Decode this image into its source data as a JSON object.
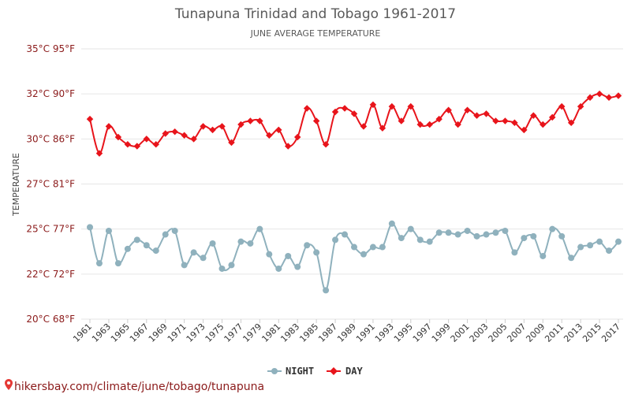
{
  "header": {
    "title": "Tunapuna Trinidad and Tobago 1961-2017",
    "subtitle": "JUNE AVERAGE TEMPERATURE"
  },
  "source": {
    "text": "hikersbay.com/climate/june/tobago/tunapuna",
    "icon": "location-pin-icon",
    "color": "#e53935"
  },
  "chart_data": {
    "type": "line",
    "title": "Tunapuna Trinidad and Tobago 1961-2017",
    "subtitle": "JUNE AVERAGE TEMPERATURE",
    "ylabel": "TEMPERATURE",
    "xlabel": "",
    "ylim": [
      20,
      35
    ],
    "grid": true,
    "legend_position": "bottom-center",
    "y_ticks": [
      {
        "value": 20,
        "label": "20°C 68°F"
      },
      {
        "value": 22.5,
        "label": "22°C 72°F"
      },
      {
        "value": 25,
        "label": "25°C 77°F"
      },
      {
        "value": 27.5,
        "label": "27°C 81°F"
      },
      {
        "value": 30,
        "label": "30°C 86°F"
      },
      {
        "value": 32.5,
        "label": "32°C 90°F"
      },
      {
        "value": 35,
        "label": "35°C 95°F"
      }
    ],
    "x_tick_labels": [
      "1961",
      "1963",
      "1965",
      "1967",
      "1969",
      "1971",
      "1973",
      "1975",
      "1977",
      "1979",
      "1981",
      "1983",
      "1985",
      "1987",
      "1989",
      "1991",
      "1993",
      "1995",
      "1997",
      "1999",
      "2001",
      "2003",
      "2005",
      "2007",
      "2009",
      "2011",
      "2013",
      "2015",
      "2017"
    ],
    "x": [
      1961,
      1962,
      1963,
      1964,
      1965,
      1966,
      1967,
      1968,
      1969,
      1970,
      1971,
      1972,
      1973,
      1974,
      1975,
      1976,
      1977,
      1978,
      1979,
      1980,
      1981,
      1982,
      1983,
      1984,
      1985,
      1986,
      1987,
      1988,
      1989,
      1990,
      1991,
      1992,
      1993,
      1994,
      1995,
      1996,
      1997,
      1998,
      1999,
      2000,
      2001,
      2002,
      2003,
      2004,
      2005,
      2006,
      2007,
      2008,
      2009,
      2010,
      2011,
      2012,
      2013,
      2014,
      2015,
      2016,
      2017
    ],
    "series": [
      {
        "name": "NIGHT",
        "color": "#8fb1bd",
        "values": [
          25.1,
          23.1,
          24.9,
          23.1,
          23.9,
          24.4,
          24.1,
          23.8,
          24.7,
          24.9,
          23.0,
          23.7,
          23.4,
          24.2,
          22.8,
          23.0,
          24.3,
          24.2,
          25.0,
          23.6,
          22.8,
          23.5,
          22.9,
          24.1,
          23.7,
          21.6,
          24.4,
          24.7,
          24.0,
          23.6,
          24.0,
          24.0,
          25.3,
          24.5,
          25.0,
          24.4,
          24.3,
          24.8,
          24.8,
          24.7,
          24.9,
          24.6,
          24.7,
          24.8,
          24.9,
          23.7,
          24.5,
          24.6,
          23.5,
          25.0,
          24.6,
          23.4,
          24.0,
          24.1,
          24.3,
          23.8,
          24.3
        ]
      },
      {
        "name": "DAY",
        "color": "#e8141b",
        "values": [
          31.1,
          29.2,
          30.7,
          30.1,
          29.7,
          29.6,
          30.0,
          29.7,
          30.3,
          30.4,
          30.2,
          30.0,
          30.7,
          30.5,
          30.7,
          29.8,
          30.8,
          31.0,
          31.0,
          30.2,
          30.5,
          29.6,
          30.1,
          31.7,
          31.0,
          29.7,
          31.5,
          31.7,
          31.4,
          30.7,
          31.9,
          30.6,
          31.8,
          31.0,
          31.8,
          30.8,
          30.8,
          31.1,
          31.6,
          30.8,
          31.6,
          31.3,
          31.4,
          31.0,
          31.0,
          30.9,
          30.5,
          31.3,
          30.8,
          31.2,
          31.8,
          30.9,
          31.8,
          32.3,
          32.5,
          32.3,
          32.4
        ]
      }
    ]
  }
}
